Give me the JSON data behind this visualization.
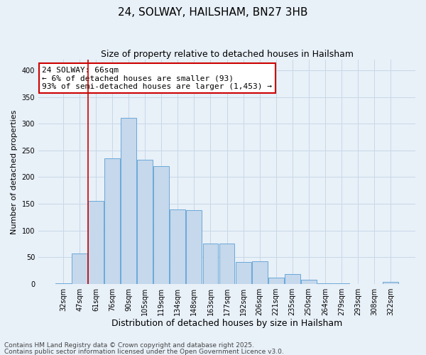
{
  "title": "24, SOLWAY, HAILSHAM, BN27 3HB",
  "subtitle": "Size of property relative to detached houses in Hailsham",
  "xlabel": "Distribution of detached houses by size in Hailsham",
  "ylabel": "Number of detached properties",
  "footnote1": "Contains HM Land Registry data © Crown copyright and database right 2025.",
  "footnote2": "Contains public sector information licensed under the Open Government Licence v3.0.",
  "categories": [
    "32sqm",
    "47sqm",
    "61sqm",
    "76sqm",
    "90sqm",
    "105sqm",
    "119sqm",
    "134sqm",
    "148sqm",
    "163sqm",
    "177sqm",
    "192sqm",
    "206sqm",
    "221sqm",
    "235sqm",
    "250sqm",
    "264sqm",
    "279sqm",
    "293sqm",
    "308sqm",
    "322sqm"
  ],
  "values": [
    1,
    57,
    155,
    235,
    311,
    232,
    221,
    140,
    138,
    75,
    75,
    41,
    42,
    11,
    18,
    7,
    1,
    1,
    0,
    0,
    3
  ],
  "bar_color": "#c5d8ec",
  "bar_edge_color": "#5a9fd4",
  "bar_alpha": 1.0,
  "vline_x_idx": 2,
  "vline_color": "#cc0000",
  "annotation_text": "24 SOLWAY: 66sqm\n← 6% of detached houses are smaller (93)\n93% of semi-detached houses are larger (1,453) →",
  "annotation_box_color": "#ffffff",
  "annotation_edge_color": "#cc0000",
  "ylim": [
    0,
    420
  ],
  "yticks": [
    0,
    50,
    100,
    150,
    200,
    250,
    300,
    350,
    400
  ],
  "grid_color": "#c8d8e8",
  "background_color": "#e8f0f8",
  "title_fontsize": 11,
  "subtitle_fontsize": 9,
  "xlabel_fontsize": 9,
  "ylabel_fontsize": 8,
  "tick_fontsize": 7,
  "annotation_fontsize": 8,
  "footnote_fontsize": 6.5
}
